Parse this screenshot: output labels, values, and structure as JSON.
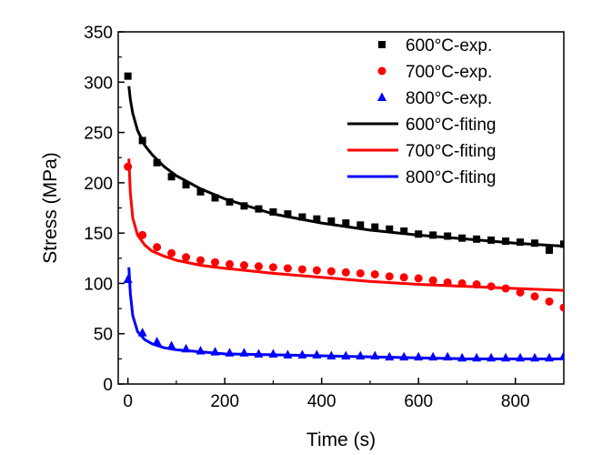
{
  "chart_data": {
    "type": "scatter",
    "title": "",
    "xlabel": "Time (s)",
    "ylabel": "Stress (MPa)",
    "xlim": [
      -20,
      900
    ],
    "ylim": [
      0,
      350
    ],
    "xticks": [
      0,
      200,
      400,
      600,
      800
    ],
    "yticks": [
      0,
      50,
      100,
      150,
      200,
      250,
      300,
      350
    ],
    "grid": false,
    "legend_position": "top-right",
    "series": [
      {
        "name": "600°C-exp.",
        "kind": "scatter",
        "marker": "square",
        "color": "#000000",
        "x": [
          0,
          30,
          60,
          90,
          120,
          150,
          180,
          210,
          240,
          270,
          300,
          330,
          360,
          390,
          420,
          450,
          480,
          510,
          540,
          570,
          600,
          630,
          660,
          690,
          720,
          750,
          780,
          810,
          840,
          870,
          900
        ],
        "y": [
          306,
          242,
          220,
          206,
          198,
          191,
          185,
          181,
          177,
          174,
          171,
          169,
          166,
          164,
          162,
          160,
          158,
          156,
          154,
          152,
          149,
          148,
          147,
          145,
          144,
          143,
          142,
          141,
          140,
          133,
          139
        ]
      },
      {
        "name": "700°C-exp.",
        "kind": "scatter",
        "marker": "circle",
        "color": "#ff0000",
        "x": [
          0,
          30,
          60,
          90,
          120,
          150,
          180,
          210,
          240,
          270,
          300,
          330,
          360,
          390,
          420,
          450,
          480,
          510,
          540,
          570,
          600,
          630,
          660,
          690,
          720,
          750,
          780,
          810,
          840,
          870,
          900
        ],
        "y": [
          216,
          148,
          136,
          130,
          126,
          123,
          121,
          119,
          118,
          117,
          116,
          115,
          114,
          113,
          112,
          111,
          110,
          109,
          107,
          106,
          105,
          103,
          101,
          100,
          99,
          97,
          95,
          91,
          87,
          82,
          76
        ]
      },
      {
        "name": "800°C-exp.",
        "kind": "scatter",
        "marker": "triangle",
        "color": "#0000ff",
        "x": [
          0,
          30,
          60,
          90,
          120,
          150,
          180,
          210,
          240,
          270,
          300,
          330,
          360,
          390,
          420,
          450,
          480,
          510,
          540,
          570,
          600,
          630,
          660,
          690,
          720,
          750,
          780,
          810,
          840,
          870,
          900
        ],
        "y": [
          104,
          51,
          42,
          38,
          35,
          33,
          32,
          31,
          31,
          30,
          30,
          29,
          29,
          29,
          28,
          28,
          28,
          28,
          27,
          27,
          27,
          27,
          27,
          26,
          26,
          26,
          26,
          26,
          26,
          26,
          28
        ]
      },
      {
        "name": "600°C-fiting",
        "kind": "line",
        "color": "#000000",
        "x": [
          2,
          5,
          10,
          20,
          35,
          50,
          75,
          100,
          150,
          200,
          300,
          400,
          500,
          600,
          700,
          800,
          900
        ],
        "y": [
          296,
          283,
          269,
          252,
          237,
          228,
          216,
          207,
          194,
          184,
          169,
          160,
          153,
          148,
          144,
          140,
          137
        ]
      },
      {
        "name": "700°C-fiting",
        "kind": "line",
        "color": "#ff0000",
        "x": [
          2,
          5,
          10,
          20,
          35,
          50,
          75,
          100,
          150,
          200,
          300,
          400,
          500,
          600,
          700,
          800,
          900
        ],
        "y": [
          224,
          190,
          165,
          148,
          138,
          132,
          127,
          123,
          118,
          115,
          110,
          106,
          102,
          99,
          97,
          95,
          93
        ]
      },
      {
        "name": "800°C-fiting",
        "kind": "line",
        "color": "#0000ff",
        "x": [
          2,
          5,
          10,
          20,
          35,
          50,
          75,
          100,
          150,
          200,
          300,
          400,
          500,
          600,
          700,
          800,
          900
        ],
        "y": [
          116,
          90,
          68,
          52,
          44,
          40,
          36,
          34,
          32,
          30,
          29,
          28,
          27,
          26,
          25,
          25,
          25
        ]
      }
    ]
  }
}
